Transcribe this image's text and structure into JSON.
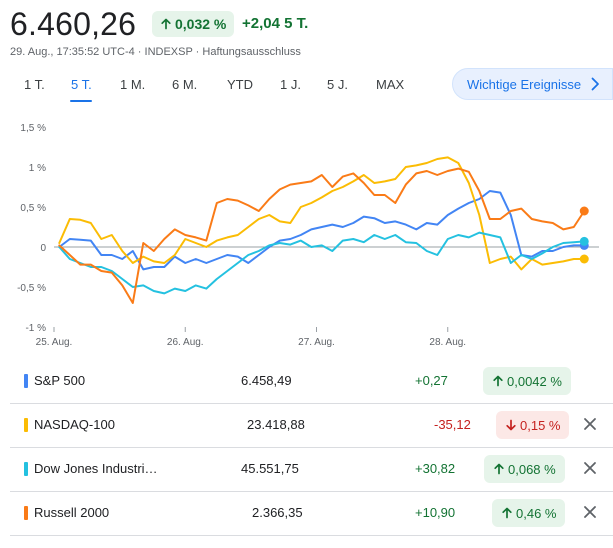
{
  "quote": {
    "price": "6.460,26",
    "change_pct": "0,032 %",
    "change_abs": "+2,04 5 T.",
    "meta": "29. Aug., 17:35:52 UTC-4 · INDEXSP · Haftungsausschluss"
  },
  "tabs": [
    {
      "label": "1 T.",
      "active": false
    },
    {
      "label": "5 T.",
      "active": true
    },
    {
      "label": "1 M.",
      "active": false
    },
    {
      "label": "6 M.",
      "active": false
    },
    {
      "label": "YTD",
      "active": false
    },
    {
      "label": "1 J.",
      "active": false
    },
    {
      "label": "5 J.",
      "active": false
    },
    {
      "label": "MAX",
      "active": false
    }
  ],
  "events_button": {
    "label": "Wichtige Ereignisse",
    "icon": "chevron-right-icon"
  },
  "colors": {
    "sp500": "#4285f4",
    "nasdaq": "#fbbc04",
    "dow": "#24c1e0",
    "russell": "#fa7b17",
    "positive": "#137333",
    "negative": "#c5221f"
  },
  "chart_data": {
    "type": "line",
    "ylabel_ticks": [
      "1,5 %",
      "1 %",
      "0,5 %",
      "0",
      "-0,5 %",
      "-1 %"
    ],
    "y_tick_values": [
      1.5,
      1,
      0.5,
      0,
      -0.5,
      -1
    ],
    "ylim": [
      -1,
      1.5
    ],
    "x_tick_labels": [
      "25. Aug.",
      "26. Aug.",
      "27. Aug.",
      "28. Aug."
    ],
    "x_tick_positions": [
      0,
      1,
      2,
      3
    ],
    "xlim": [
      0,
      4
    ],
    "baseline": 0,
    "series": [
      {
        "key": "sp500",
        "color": "#4285f4",
        "x": [
          0.04,
          0.12,
          0.2,
          0.28,
          0.36,
          0.44,
          0.52,
          0.6,
          0.68,
          0.76,
          0.84,
          0.92,
          1,
          1.08,
          1.16,
          1.24,
          1.32,
          1.4,
          1.48,
          1.56,
          1.64,
          1.72,
          1.8,
          1.88,
          1.96,
          2.04,
          2.12,
          2.2,
          2.28,
          2.36,
          2.44,
          2.52,
          2.6,
          2.68,
          2.76,
          2.84,
          2.92,
          3,
          3.08,
          3.16,
          3.24,
          3.32,
          3.4,
          3.48,
          3.56,
          3.64,
          3.72,
          3.8,
          3.88,
          3.96,
          4.04
        ],
        "y": [
          0,
          0.1,
          0.09,
          0.08,
          -0.1,
          -0.1,
          -0.15,
          -0.05,
          -0.28,
          -0.25,
          -0.25,
          -0.12,
          -0.2,
          -0.15,
          -0.2,
          -0.15,
          -0.1,
          -0.12,
          -0.2,
          -0.1,
          0,
          0.08,
          0.1,
          0.15,
          0.22,
          0.25,
          0.28,
          0.25,
          0.3,
          0.38,
          0.36,
          0.3,
          0.32,
          0.28,
          0.22,
          0.3,
          0.28,
          0.4,
          0.48,
          0.55,
          0.6,
          0.7,
          0.68,
          0.4,
          -0.1,
          -0.12,
          -0.05,
          -0.05,
          0,
          0.02,
          0.02
        ]
      },
      {
        "key": "nasdaq",
        "color": "#fbbc04",
        "x": [
          0.04,
          0.12,
          0.2,
          0.28,
          0.36,
          0.44,
          0.52,
          0.6,
          0.68,
          0.76,
          0.84,
          0.92,
          1,
          1.08,
          1.16,
          1.24,
          1.32,
          1.4,
          1.48,
          1.56,
          1.64,
          1.72,
          1.8,
          1.88,
          1.96,
          2.04,
          2.12,
          2.2,
          2.28,
          2.36,
          2.44,
          2.52,
          2.6,
          2.68,
          2.76,
          2.84,
          2.92,
          3,
          3.08,
          3.16,
          3.24,
          3.32,
          3.4,
          3.48,
          3.56,
          3.64,
          3.72,
          3.8,
          3.88,
          3.96,
          4.04
        ],
        "y": [
          0.05,
          0.35,
          0.34,
          0.3,
          0.1,
          0.15,
          -0.05,
          -0.2,
          -0.12,
          -0.18,
          -0.2,
          -0.1,
          0.1,
          0.05,
          0,
          0.08,
          0.12,
          0.15,
          0.25,
          0.35,
          0.4,
          0.32,
          0.3,
          0.5,
          0.55,
          0.62,
          0.7,
          0.75,
          0.82,
          0.9,
          0.8,
          0.82,
          0.85,
          1,
          1.02,
          1.05,
          1.1,
          1.12,
          1.05,
          0.8,
          0.4,
          -0.2,
          -0.15,
          -0.12,
          -0.28,
          -0.15,
          -0.22,
          -0.2,
          -0.18,
          -0.15,
          -0.15
        ]
      },
      {
        "key": "dow",
        "color": "#24c1e0",
        "x": [
          0.04,
          0.12,
          0.2,
          0.28,
          0.36,
          0.44,
          0.52,
          0.6,
          0.68,
          0.76,
          0.84,
          0.92,
          1,
          1.08,
          1.16,
          1.24,
          1.32,
          1.4,
          1.48,
          1.56,
          1.64,
          1.72,
          1.8,
          1.88,
          1.96,
          2.04,
          2.12,
          2.2,
          2.28,
          2.36,
          2.44,
          2.52,
          2.6,
          2.68,
          2.76,
          2.84,
          2.92,
          3,
          3.08,
          3.16,
          3.24,
          3.32,
          3.4,
          3.48,
          3.56,
          3.64,
          3.72,
          3.8,
          3.88,
          3.96,
          4.04
        ],
        "y": [
          0,
          -0.15,
          -0.2,
          -0.25,
          -0.25,
          -0.3,
          -0.4,
          -0.5,
          -0.48,
          -0.55,
          -0.58,
          -0.52,
          -0.55,
          -0.48,
          -0.52,
          -0.4,
          -0.3,
          -0.2,
          -0.1,
          -0.05,
          0.02,
          0.05,
          0.03,
          0.08,
          0,
          0.02,
          -0.05,
          0.08,
          0.1,
          0.06,
          0.15,
          0.1,
          0.15,
          0.06,
          0.05,
          -0.05,
          -0.1,
          0.1,
          0.15,
          0.12,
          0.18,
          0.15,
          0.12,
          -0.2,
          -0.1,
          -0.15,
          -0.08,
          0,
          0.05,
          0.06,
          0.07
        ]
      },
      {
        "key": "russell",
        "color": "#fa7b17",
        "x": [
          0.04,
          0.12,
          0.2,
          0.28,
          0.36,
          0.44,
          0.52,
          0.6,
          0.68,
          0.76,
          0.84,
          0.92,
          1,
          1.08,
          1.16,
          1.24,
          1.32,
          1.4,
          1.48,
          1.56,
          1.64,
          1.72,
          1.8,
          1.88,
          1.96,
          2.04,
          2.12,
          2.2,
          2.28,
          2.36,
          2.44,
          2.52,
          2.6,
          2.68,
          2.76,
          2.84,
          2.92,
          3,
          3.08,
          3.16,
          3.24,
          3.32,
          3.4,
          3.48,
          3.56,
          3.64,
          3.72,
          3.8,
          3.88,
          3.96,
          4.04
        ],
        "y": [
          0.02,
          -0.1,
          -0.22,
          -0.22,
          -0.3,
          -0.32,
          -0.48,
          -0.7,
          0.05,
          -0.05,
          0.1,
          0.22,
          0.15,
          0.12,
          0.08,
          0.55,
          0.6,
          0.58,
          0.52,
          0.45,
          0.6,
          0.72,
          0.78,
          0.8,
          0.82,
          0.9,
          0.75,
          0.88,
          0.92,
          0.8,
          0.65,
          0.65,
          0.55,
          0.78,
          0.92,
          0.95,
          0.9,
          0.95,
          0.98,
          0.94,
          0.7,
          0.35,
          0.35,
          0.45,
          0.48,
          0.35,
          0.32,
          0.3,
          0.22,
          0.25,
          0.45
        ]
      }
    ]
  },
  "indices": [
    {
      "key": "sp500",
      "name": "S&P 500",
      "value": "6.458,49",
      "change": "+0,27",
      "pct": "0,0042 %",
      "dir": "pos",
      "closable": false
    },
    {
      "key": "nasdaq",
      "name": "NASDAQ-100",
      "value": "23.418,88",
      "change": "-35,12",
      "pct": "0,15 %",
      "dir": "neg",
      "closable": true
    },
    {
      "key": "dow",
      "name": "Dow Jones Industri…",
      "value": "45.551,75",
      "change": "+30,82",
      "pct": "0,068 %",
      "dir": "pos",
      "closable": true
    },
    {
      "key": "russell",
      "name": "Russell 2000",
      "value": "2.366,35",
      "change": "+10,90",
      "pct": "0,46 %",
      "dir": "pos",
      "closable": true
    }
  ]
}
